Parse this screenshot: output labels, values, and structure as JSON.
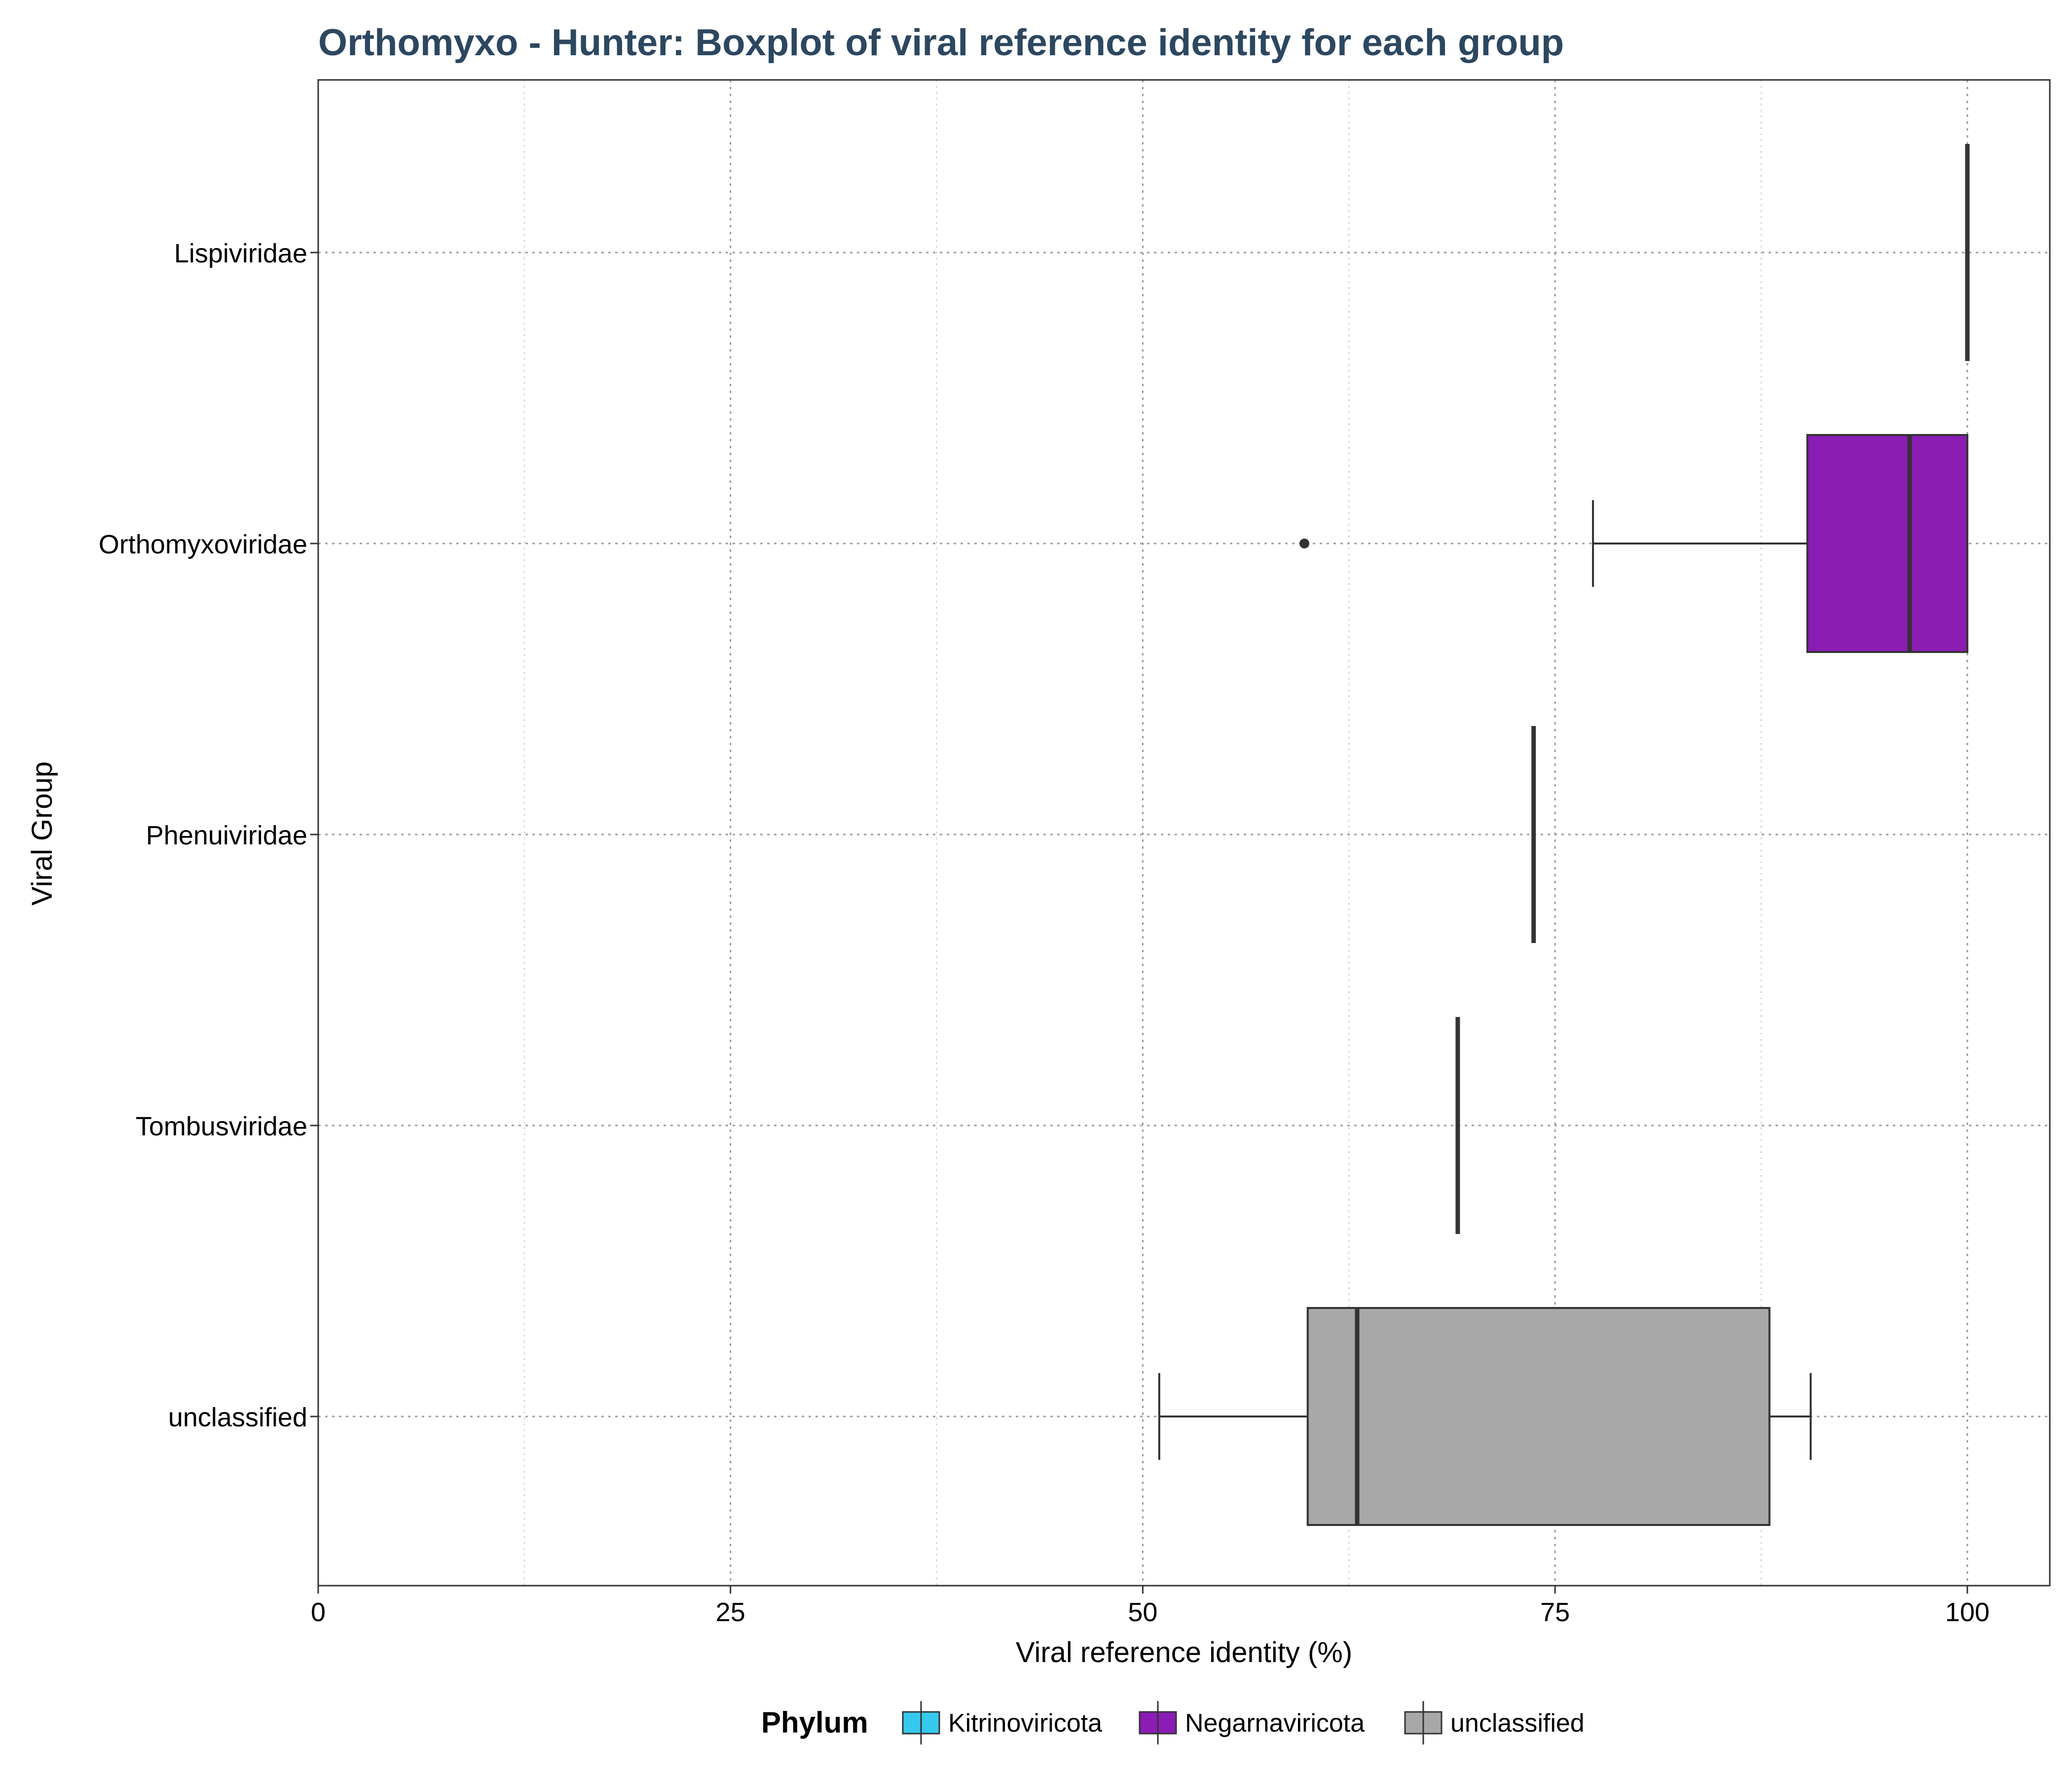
{
  "chart_data": {
    "type": "boxplot",
    "title": "Orthomyxo - Hunter: Boxplot of viral reference identity for each group",
    "xlabel": "Viral reference identity (%)",
    "ylabel": "Viral Group",
    "xlim": [
      0,
      105
    ],
    "x_ticks": [
      "0",
      "25",
      "50",
      "75",
      "100"
    ],
    "x_tick_values": [
      0,
      25,
      50,
      75,
      100
    ],
    "grid": true,
    "categories": [
      "Lispiviridae",
      "Orthomyxoviridae",
      "Phenuiviridae",
      "Tombusviridae",
      "unclassified"
    ],
    "boxes": [
      {
        "group": "Lispiviridae",
        "phylum": "Negarnaviricota",
        "min": 100,
        "q1": 100,
        "median": 100,
        "q3": 100,
        "max": 100,
        "outliers": []
      },
      {
        "group": "Orthomyxoviridae",
        "phylum": "Negarnaviricota",
        "min": 77.3,
        "q1": 90.3,
        "median": 96.5,
        "q3": 100,
        "max": 100,
        "outliers": [
          59.8
        ]
      },
      {
        "group": "Phenuiviridae",
        "phylum": "Kitrinoviricota",
        "min": 73.7,
        "q1": 73.7,
        "median": 73.7,
        "q3": 73.7,
        "max": 73.7,
        "outliers": []
      },
      {
        "group": "Tombusviridae",
        "phylum": "Kitrinoviricota",
        "min": 69.1,
        "q1": 69.1,
        "median": 69.1,
        "q3": 69.1,
        "max": 69.1,
        "outliers": []
      },
      {
        "group": "unclassified",
        "phylum": "unclassified",
        "min": 51.0,
        "q1": 60.0,
        "median": 63.0,
        "q3": 88.0,
        "max": 90.5,
        "outliers": []
      }
    ],
    "legend": {
      "title": "Phylum",
      "position": "bottom",
      "entries": [
        {
          "label": "Kitrinoviricota",
          "color": "#35C9EE"
        },
        {
          "label": "Negarnaviricota",
          "color": "#8B1CB4"
        },
        {
          "label": "unclassified",
          "color": "#A8A8A8"
        }
      ]
    },
    "colors": {
      "title": "#2C4760",
      "box_stroke": "#333333",
      "grid": "#999999",
      "panel_border": "#333333"
    }
  }
}
